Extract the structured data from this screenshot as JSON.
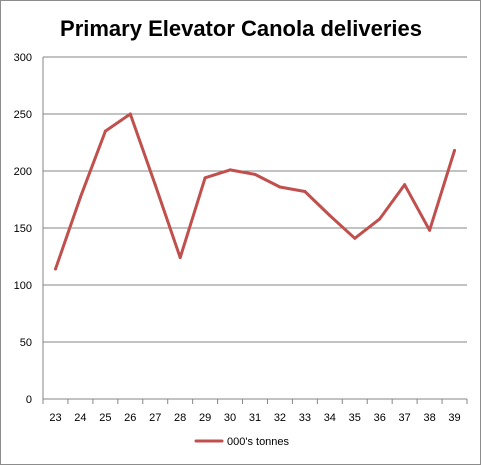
{
  "chart_data": {
    "type": "line",
    "title": "Primary Elevator Canola deliveries",
    "xlabel": "",
    "ylabel": "",
    "categories": [
      "23",
      "24",
      "25",
      "26",
      "27",
      "28",
      "29",
      "30",
      "31",
      "32",
      "33",
      "34",
      "35",
      "36",
      "37",
      "38",
      "39"
    ],
    "series": [
      {
        "name": "000's tonnes",
        "color": "#c0504d",
        "values": [
          114,
          177,
          235,
          250,
          188,
          124,
          194,
          201,
          197,
          186,
          182,
          161,
          141,
          158,
          188,
          148,
          218
        ]
      }
    ],
    "ylim": [
      0,
      300
    ],
    "yticks": [
      "0",
      "50",
      "100",
      "150",
      "200",
      "250",
      "300"
    ],
    "grid": true,
    "legend": "bottom"
  }
}
